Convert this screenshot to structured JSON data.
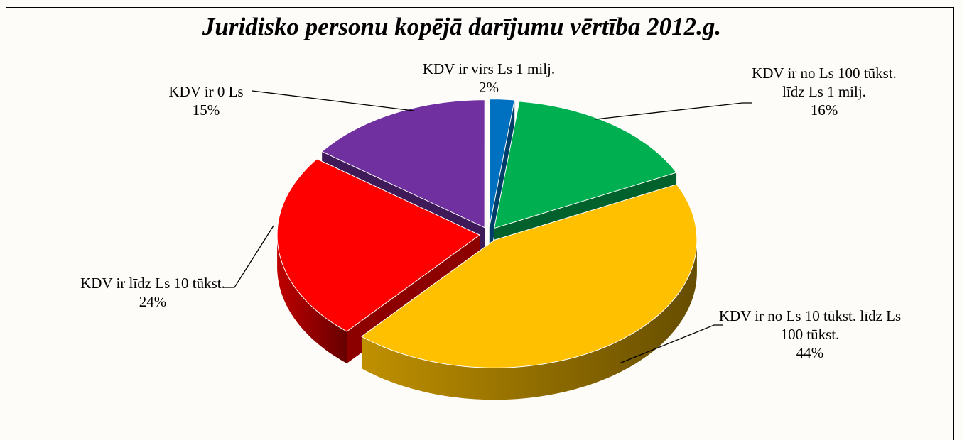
{
  "chart_data": {
    "type": "pie3d",
    "title": "Juridisko personu kopējā darījumu vērtība 2012.g.",
    "categories": [
      "KDV ir virs Ls 1 milj.",
      "KDV ir no Ls 100 tūkst. līdz Ls 1 milj.",
      "KDV ir no Ls 10 tūkst. līdz Ls 100 tūkst.",
      "KDV ir līdz Ls 10 tūkst.",
      "KDV ir 0 Ls"
    ],
    "values": [
      2,
      16,
      44,
      24,
      15
    ],
    "value_labels": [
      "2%",
      "16%",
      "44%",
      "24%",
      "15%"
    ],
    "colors": [
      "#0070c0",
      "#00b050",
      "#ffc000",
      "#ff0000",
      "#7030a0"
    ]
  }
}
